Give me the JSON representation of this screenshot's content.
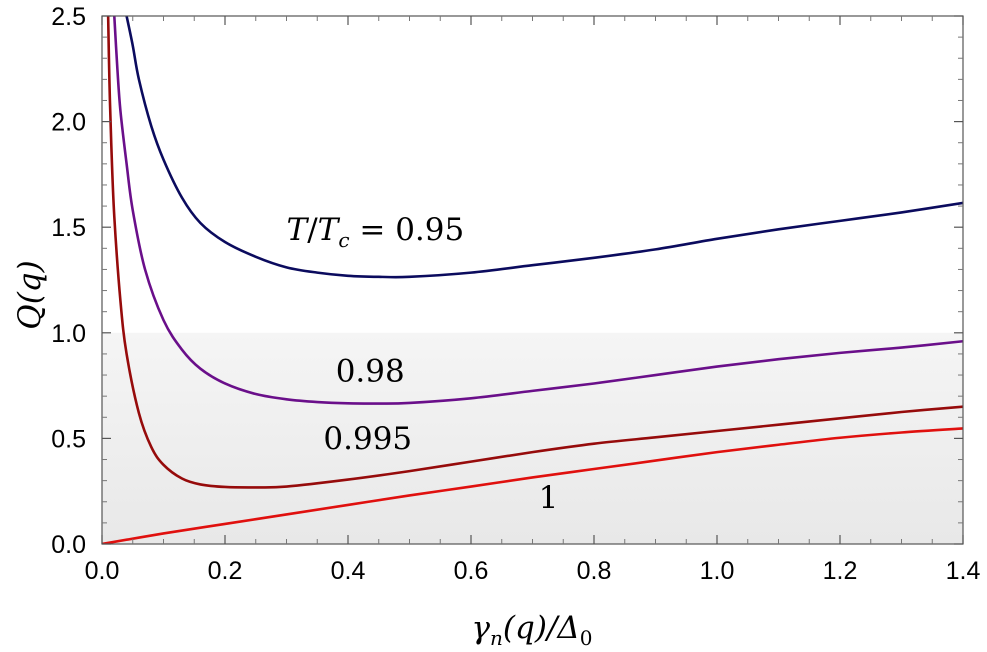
{
  "chart_data": {
    "type": "line",
    "title": "",
    "xlabel": "γn(q)/Δ0",
    "ylabel": "Q(q)",
    "xlim": [
      0,
      1.4
    ],
    "ylim": [
      0,
      2.5
    ],
    "x_ticks": [
      "0.0",
      "0.2",
      "0.4",
      "0.6",
      "0.8",
      "1.0",
      "1.2",
      "1.4"
    ],
    "y_ticks": [
      "0.0",
      "0.5",
      "1.0",
      "1.5",
      "2.0",
      "2.5"
    ],
    "shaded_region": {
      "y_from": 0,
      "y_to": 1.0,
      "color": "#efefef"
    },
    "grid": false,
    "series": [
      {
        "name": "T/Tc = 0.95",
        "label_text": "T/Tc = 0.95",
        "label_at": [
          0.3,
          1.44
        ],
        "color": "#0b0b5e",
        "points": [
          [
            0.04,
            2.5
          ],
          [
            0.05,
            2.36
          ],
          [
            0.06,
            2.2
          ],
          [
            0.08,
            1.98
          ],
          [
            0.1,
            1.82
          ],
          [
            0.13,
            1.64
          ],
          [
            0.16,
            1.52
          ],
          [
            0.2,
            1.43
          ],
          [
            0.25,
            1.36
          ],
          [
            0.3,
            1.31
          ],
          [
            0.35,
            1.285
          ],
          [
            0.4,
            1.27
          ],
          [
            0.45,
            1.265
          ],
          [
            0.5,
            1.265
          ],
          [
            0.6,
            1.285
          ],
          [
            0.7,
            1.32
          ],
          [
            0.8,
            1.355
          ],
          [
            0.9,
            1.395
          ],
          [
            1.0,
            1.445
          ],
          [
            1.1,
            1.49
          ],
          [
            1.2,
            1.53
          ],
          [
            1.3,
            1.57
          ],
          [
            1.4,
            1.615
          ]
        ]
      },
      {
        "name": "0.98",
        "label_text": "0.98",
        "label_at": [
          0.38,
          0.77
        ],
        "color": "#6a0f8a",
        "points": [
          [
            0.02,
            2.5
          ],
          [
            0.025,
            2.25
          ],
          [
            0.03,
            2.05
          ],
          [
            0.04,
            1.8
          ],
          [
            0.05,
            1.58
          ],
          [
            0.07,
            1.3
          ],
          [
            0.1,
            1.06
          ],
          [
            0.13,
            0.92
          ],
          [
            0.16,
            0.83
          ],
          [
            0.2,
            0.76
          ],
          [
            0.25,
            0.71
          ],
          [
            0.3,
            0.685
          ],
          [
            0.35,
            0.672
          ],
          [
            0.4,
            0.666
          ],
          [
            0.45,
            0.665
          ],
          [
            0.5,
            0.668
          ],
          [
            0.6,
            0.69
          ],
          [
            0.7,
            0.725
          ],
          [
            0.8,
            0.76
          ],
          [
            0.9,
            0.8
          ],
          [
            1.0,
            0.84
          ],
          [
            1.1,
            0.875
          ],
          [
            1.2,
            0.905
          ],
          [
            1.3,
            0.93
          ],
          [
            1.4,
            0.96
          ]
        ]
      },
      {
        "name": "0.995",
        "label_text": "0.995",
        "label_at": [
          0.36,
          0.45
        ],
        "color": "#960b0b",
        "points": [
          [
            0.01,
            2.5
          ],
          [
            0.012,
            2.2
          ],
          [
            0.015,
            1.9
          ],
          [
            0.02,
            1.55
          ],
          [
            0.03,
            1.15
          ],
          [
            0.04,
            0.9
          ],
          [
            0.06,
            0.62
          ],
          [
            0.08,
            0.46
          ],
          [
            0.1,
            0.375
          ],
          [
            0.13,
            0.31
          ],
          [
            0.16,
            0.282
          ],
          [
            0.2,
            0.27
          ],
          [
            0.25,
            0.268
          ],
          [
            0.3,
            0.272
          ],
          [
            0.4,
            0.305
          ],
          [
            0.5,
            0.345
          ],
          [
            0.6,
            0.39
          ],
          [
            0.7,
            0.435
          ],
          [
            0.8,
            0.475
          ],
          [
            0.9,
            0.505
          ],
          [
            1.0,
            0.535
          ],
          [
            1.1,
            0.565
          ],
          [
            1.2,
            0.595
          ],
          [
            1.3,
            0.625
          ],
          [
            1.4,
            0.65
          ]
        ]
      },
      {
        "name": "1",
        "label_text": "1",
        "label_at": [
          0.71,
          0.17
        ],
        "color": "#e0100e",
        "points": [
          [
            0.0,
            0.0
          ],
          [
            0.1,
            0.05
          ],
          [
            0.2,
            0.095
          ],
          [
            0.3,
            0.14
          ],
          [
            0.4,
            0.185
          ],
          [
            0.5,
            0.23
          ],
          [
            0.6,
            0.272
          ],
          [
            0.7,
            0.315
          ],
          [
            0.8,
            0.355
          ],
          [
            0.9,
            0.395
          ],
          [
            1.0,
            0.435
          ],
          [
            1.1,
            0.47
          ],
          [
            1.2,
            0.503
          ],
          [
            1.3,
            0.528
          ],
          [
            1.4,
            0.547
          ]
        ]
      }
    ]
  }
}
